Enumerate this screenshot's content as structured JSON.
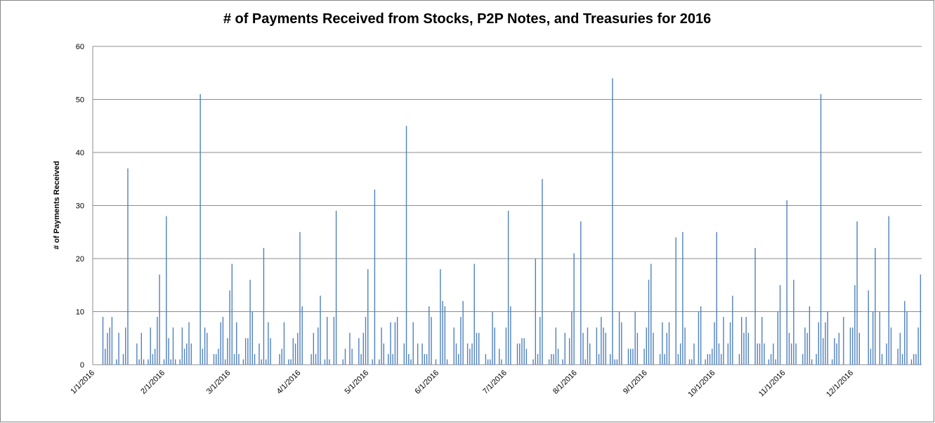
{
  "chart_data": {
    "type": "bar",
    "title": "# of Payments Received from Stocks, P2P Notes, and Treasuries for 2016",
    "y_label": "# of Payments Received",
    "color": "#4f81bd",
    "ylim": [
      0,
      60
    ],
    "yticks": [
      0,
      10,
      20,
      30,
      40,
      50,
      60
    ],
    "grid": true,
    "categories": [
      "1/1/2016",
      null,
      null,
      null,
      null,
      null,
      null,
      null,
      null,
      null,
      null,
      null,
      null,
      null,
      null,
      null,
      null,
      null,
      null,
      null,
      null,
      null,
      null,
      null,
      null,
      null,
      null,
      null,
      null,
      null,
      null,
      "2/1/2016",
      null,
      null,
      null,
      null,
      null,
      null,
      null,
      null,
      null,
      null,
      null,
      null,
      null,
      null,
      null,
      null,
      null,
      null,
      null,
      null,
      null,
      null,
      null,
      null,
      null,
      null,
      null,
      null,
      "3/1/2016",
      null,
      null,
      null,
      null,
      null,
      null,
      null,
      null,
      null,
      null,
      null,
      null,
      null,
      null,
      null,
      null,
      null,
      null,
      null,
      null,
      null,
      null,
      null,
      null,
      null,
      null,
      null,
      null,
      null,
      null,
      "4/1/2016",
      null,
      null,
      null,
      null,
      null,
      null,
      null,
      null,
      null,
      null,
      null,
      null,
      null,
      null,
      null,
      null,
      null,
      null,
      null,
      null,
      null,
      null,
      null,
      null,
      null,
      null,
      null,
      null,
      null,
      "5/1/2016",
      null,
      null,
      null,
      null,
      null,
      null,
      null,
      null,
      null,
      null,
      null,
      null,
      null,
      null,
      null,
      null,
      null,
      null,
      null,
      null,
      null,
      null,
      null,
      null,
      null,
      null,
      null,
      null,
      null,
      null,
      "6/1/2016",
      null,
      null,
      null,
      null,
      null,
      null,
      null,
      null,
      null,
      null,
      null,
      null,
      null,
      null,
      null,
      null,
      null,
      null,
      null,
      null,
      null,
      null,
      null,
      null,
      null,
      null,
      null,
      null,
      null,
      "7/1/2016",
      null,
      null,
      null,
      null,
      null,
      null,
      null,
      null,
      null,
      null,
      null,
      null,
      null,
      null,
      null,
      null,
      null,
      null,
      null,
      null,
      null,
      null,
      null,
      null,
      null,
      null,
      null,
      null,
      null,
      null,
      "8/1/2016",
      null,
      null,
      null,
      null,
      null,
      null,
      null,
      null,
      null,
      null,
      null,
      null,
      null,
      null,
      null,
      null,
      null,
      null,
      null,
      null,
      null,
      null,
      null,
      null,
      null,
      null,
      null,
      null,
      null,
      null,
      "9/1/2016",
      null,
      null,
      null,
      null,
      null,
      null,
      null,
      null,
      null,
      null,
      null,
      null,
      null,
      null,
      null,
      null,
      null,
      null,
      null,
      null,
      null,
      null,
      null,
      null,
      null,
      null,
      null,
      null,
      null,
      "10/1/2016",
      null,
      null,
      null,
      null,
      null,
      null,
      null,
      null,
      null,
      null,
      null,
      null,
      null,
      null,
      null,
      null,
      null,
      null,
      null,
      null,
      null,
      null,
      null,
      null,
      null,
      null,
      null,
      null,
      null,
      null,
      "11/1/2016",
      null,
      null,
      null,
      null,
      null,
      null,
      null,
      null,
      null,
      null,
      null,
      null,
      null,
      null,
      null,
      null,
      null,
      null,
      null,
      null,
      null,
      null,
      null,
      null,
      null,
      null,
      null,
      null,
      null,
      "12/1/2016",
      null,
      null,
      null,
      null,
      null,
      null,
      null,
      null,
      null,
      null,
      null,
      null,
      null,
      null,
      null,
      null,
      null,
      null,
      null,
      null,
      null,
      null,
      null,
      null,
      null,
      null,
      null,
      null,
      null,
      null
    ],
    "values": [
      0,
      0,
      0,
      0,
      9,
      3,
      6,
      7,
      9,
      0,
      1,
      6,
      0,
      2,
      7,
      37,
      0,
      0,
      0,
      4,
      1,
      6,
      1,
      0,
      1,
      7,
      2,
      3,
      9,
      17,
      0,
      1,
      28,
      5,
      1,
      7,
      1,
      0,
      1,
      7,
      3,
      4,
      8,
      4,
      0,
      0,
      0,
      51,
      3,
      7,
      6,
      0,
      0,
      2,
      2,
      3,
      8,
      9,
      1,
      5,
      14,
      19,
      2,
      8,
      2,
      0,
      1,
      5,
      5,
      16,
      10,
      2,
      0,
      4,
      1,
      22,
      1,
      8,
      5,
      0,
      0,
      0,
      2,
      3,
      8,
      0,
      1,
      1,
      5,
      4,
      6,
      25,
      11,
      0,
      0,
      0,
      2,
      6,
      2,
      7,
      13,
      0,
      1,
      9,
      1,
      0,
      9,
      29,
      0,
      0,
      1,
      3,
      0,
      6,
      3,
      0,
      0,
      5,
      2,
      6,
      9,
      18,
      0,
      1,
      33,
      0,
      1,
      7,
      4,
      0,
      2,
      8,
      2,
      8,
      9,
      0,
      0,
      4,
      45,
      2,
      1,
      8,
      0,
      4,
      0,
      4,
      2,
      2,
      11,
      9,
      0,
      1,
      0,
      18,
      12,
      11,
      1,
      0,
      0,
      7,
      4,
      2,
      9,
      12,
      0,
      4,
      3,
      4,
      19,
      6,
      6,
      0,
      0,
      2,
      1,
      1,
      10,
      7,
      0,
      3,
      1,
      0,
      7,
      29,
      11,
      0,
      0,
      4,
      4,
      5,
      5,
      3,
      0,
      0,
      1,
      20,
      2,
      9,
      35,
      0,
      0,
      1,
      2,
      2,
      7,
      3,
      0,
      1,
      6,
      0,
      5,
      10,
      21,
      0,
      0,
      27,
      6,
      1,
      7,
      4,
      0,
      0,
      7,
      2,
      9,
      7,
      6,
      0,
      2,
      54,
      1,
      1,
      10,
      8,
      0,
      0,
      3,
      3,
      3,
      10,
      6,
      0,
      0,
      3,
      7,
      16,
      19,
      6,
      0,
      0,
      2,
      8,
      2,
      6,
      8,
      0,
      0,
      24,
      2,
      4,
      25,
      7,
      0,
      1,
      1,
      4,
      0,
      10,
      11,
      0,
      1,
      2,
      2,
      3,
      8,
      25,
      4,
      2,
      9,
      0,
      4,
      8,
      13,
      0,
      0,
      2,
      9,
      6,
      9,
      6,
      0,
      0,
      22,
      4,
      4,
      9,
      4,
      0,
      1,
      2,
      4,
      1,
      10,
      15,
      0,
      0,
      31,
      6,
      4,
      16,
      4,
      0,
      0,
      2,
      7,
      6,
      11,
      1,
      0,
      2,
      8,
      51,
      5,
      8,
      10,
      0,
      1,
      5,
      4,
      6,
      0,
      9,
      0,
      0,
      7,
      7,
      15,
      27,
      6,
      0,
      0,
      0,
      14,
      3,
      10,
      22,
      0,
      10,
      2,
      0,
      4,
      28,
      7,
      0,
      0,
      3,
      6,
      2,
      12,
      10,
      0,
      1,
      2,
      2,
      7,
      17
    ]
  }
}
